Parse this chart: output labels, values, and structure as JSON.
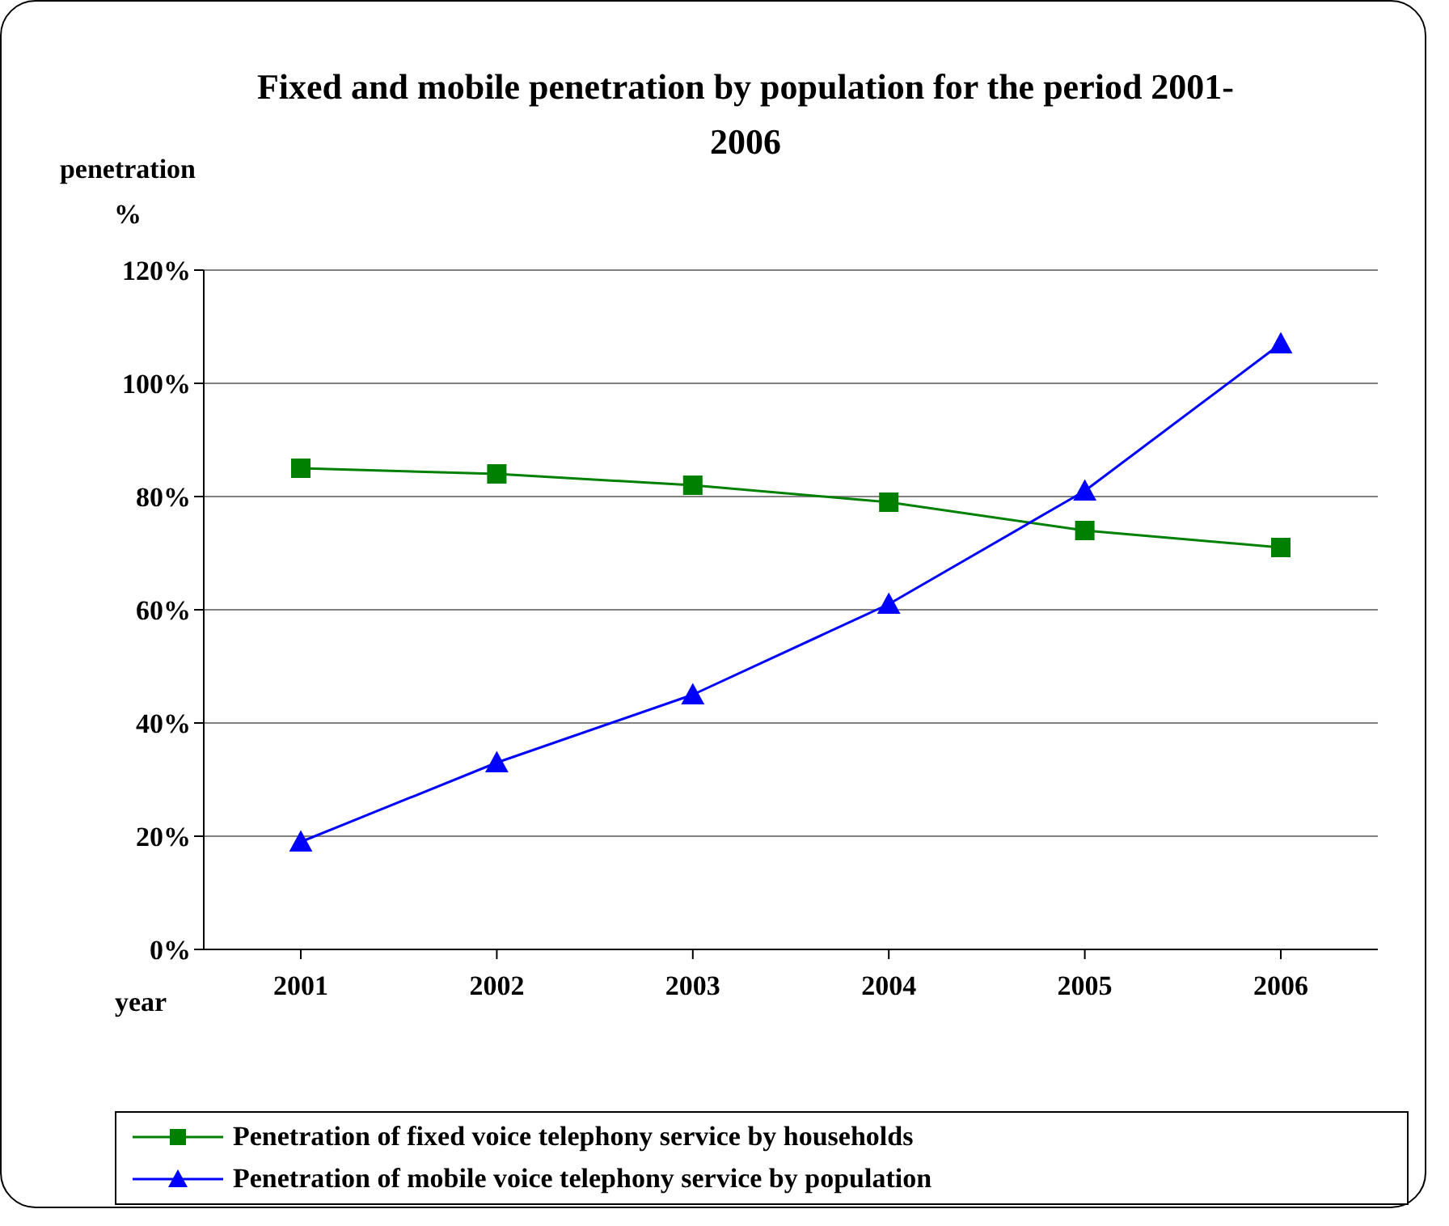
{
  "chart_data": {
    "type": "line",
    "title": "Fixed and mobile penetration by population for the period 2001-2006",
    "ylabel": "penetration %",
    "xlabel": "year",
    "categories": [
      "2001",
      "2002",
      "2003",
      "2004",
      "2005",
      "2006"
    ],
    "series": [
      {
        "name": "Penetration of fixed voice telephony service by households",
        "color": "#008000",
        "marker": "square",
        "values": [
          85,
          84,
          82,
          79,
          74,
          71
        ]
      },
      {
        "name": "Penetration of mobile voice telephony service by population",
        "color": "#0000ff",
        "marker": "triangle",
        "values": [
          19,
          33,
          45,
          61,
          81,
          107
        ]
      }
    ],
    "ylim": [
      0,
      120
    ],
    "yticks": [
      {
        "value": 0,
        "label": "0%"
      },
      {
        "value": 20,
        "label": "20%"
      },
      {
        "value": 40,
        "label": "40%"
      },
      {
        "value": 60,
        "label": "60%"
      },
      {
        "value": 80,
        "label": "80%"
      },
      {
        "value": 100,
        "label": "100%"
      },
      {
        "value": 120,
        "label": "120%"
      }
    ],
    "grid": "y",
    "legend": "bottom",
    "line_style": "solid"
  }
}
